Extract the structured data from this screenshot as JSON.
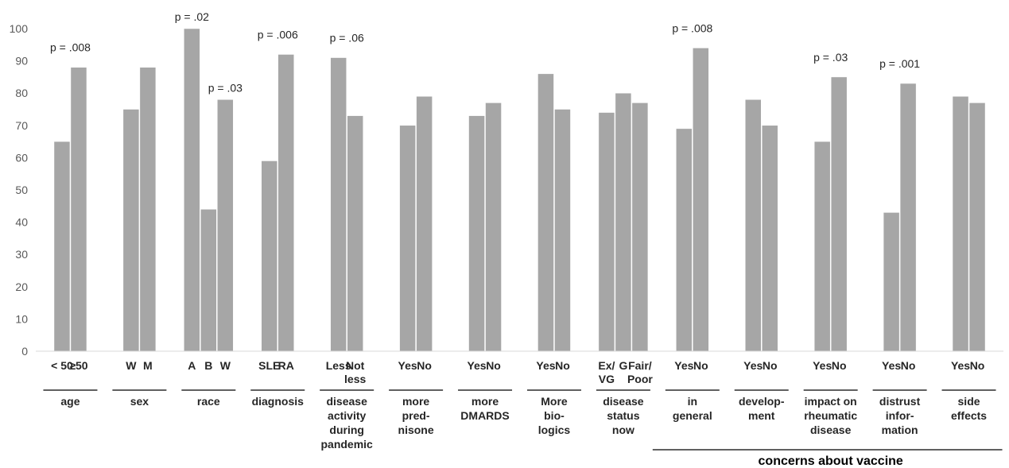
{
  "chart_data": {
    "type": "bar",
    "ylim": [
      0,
      100
    ],
    "yticks": [
      "0",
      "10",
      "20",
      "30",
      "40",
      "50",
      "60",
      "70",
      "80",
      "90",
      "100"
    ],
    "grid": false,
    "bar_color": "#a6a6a6",
    "groups": [
      {
        "label": [
          "age"
        ],
        "bars": [
          {
            "cat": [
              "< 50"
            ],
            "value": 65
          },
          {
            "cat": [
              "≥50"
            ],
            "value": 88
          }
        ],
        "pvalue": "p = .008"
      },
      {
        "label": [
          "sex"
        ],
        "bars": [
          {
            "cat": [
              "W"
            ],
            "value": 75
          },
          {
            "cat": [
              "M"
            ],
            "value": 88
          }
        ],
        "pvalue": ""
      },
      {
        "label": [
          "race"
        ],
        "bars": [
          {
            "cat": [
              "A"
            ],
            "value": 100,
            "pvalue": "p = .02"
          },
          {
            "cat": [
              "B"
            ],
            "value": 44
          },
          {
            "cat": [
              "W"
            ],
            "value": 78,
            "pvalue": "p = .03"
          }
        ],
        "pvalue": ""
      },
      {
        "label": [
          "diagnosis"
        ],
        "bars": [
          {
            "cat": [
              "SLE"
            ],
            "value": 59
          },
          {
            "cat": [
              "RA"
            ],
            "value": 92
          }
        ],
        "pvalue": "p = .006"
      },
      {
        "label": [
          "disease",
          "activity",
          "during",
          "pandemic"
        ],
        "bars": [
          {
            "cat": [
              "Less"
            ],
            "value": 91
          },
          {
            "cat": [
              "Not",
              "less"
            ],
            "value": 73
          }
        ],
        "pvalue": "p = .06"
      },
      {
        "label": [
          "more",
          "pred-",
          "nisone"
        ],
        "bars": [
          {
            "cat": [
              "Yes"
            ],
            "value": 70
          },
          {
            "cat": [
              "No"
            ],
            "value": 79
          }
        ],
        "pvalue": ""
      },
      {
        "label": [
          "more",
          "DMARDS"
        ],
        "bars": [
          {
            "cat": [
              "Yes"
            ],
            "value": 73
          },
          {
            "cat": [
              "No"
            ],
            "value": 77
          }
        ],
        "pvalue": ""
      },
      {
        "label": [
          "More",
          "bio-",
          "logics"
        ],
        "bars": [
          {
            "cat": [
              "Yes"
            ],
            "value": 86
          },
          {
            "cat": [
              "No"
            ],
            "value": 75
          }
        ],
        "pvalue": ""
      },
      {
        "label": [
          "disease",
          "status",
          "now"
        ],
        "bars": [
          {
            "cat": [
              "Ex/",
              "VG"
            ],
            "value": 74
          },
          {
            "cat": [
              "G"
            ],
            "value": 80
          },
          {
            "cat": [
              "Fair/",
              "Poor"
            ],
            "value": 77
          }
        ],
        "pvalue": ""
      },
      {
        "label": [
          "in",
          "general"
        ],
        "bars": [
          {
            "cat": [
              "Yes"
            ],
            "value": 69
          },
          {
            "cat": [
              "No"
            ],
            "value": 94
          }
        ],
        "pvalue": "p = .008"
      },
      {
        "label": [
          "develop-",
          "ment"
        ],
        "bars": [
          {
            "cat": [
              "Yes"
            ],
            "value": 78
          },
          {
            "cat": [
              "No"
            ],
            "value": 70
          }
        ],
        "pvalue": ""
      },
      {
        "label": [
          "impact on",
          "rheumatic",
          "disease"
        ],
        "bars": [
          {
            "cat": [
              "Yes"
            ],
            "value": 65
          },
          {
            "cat": [
              "No"
            ],
            "value": 85
          }
        ],
        "pvalue": "p = .03"
      },
      {
        "label": [
          "distrust",
          "infor-",
          "mation"
        ],
        "bars": [
          {
            "cat": [
              "Yes"
            ],
            "value": 43
          },
          {
            "cat": [
              "No"
            ],
            "value": 83
          }
        ],
        "pvalue": "p = .001"
      },
      {
        "label": [
          "side",
          "effects"
        ],
        "bars": [
          {
            "cat": [
              "Yes"
            ],
            "value": 79
          },
          {
            "cat": [
              "No"
            ],
            "value": 77
          }
        ],
        "pvalue": ""
      }
    ],
    "super_label": "concerns about vaccine"
  }
}
